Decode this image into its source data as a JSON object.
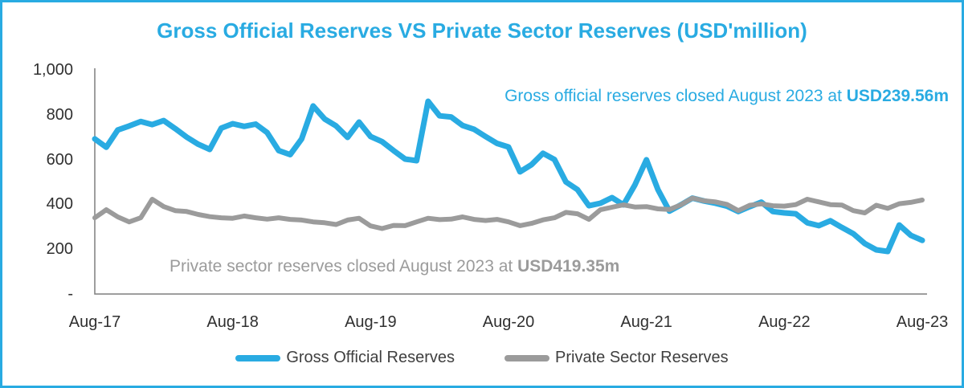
{
  "title": "Gross Official Reserves VS Private Sector Reserves (USD'million)",
  "colors": {
    "gross_line": "#29ABE2",
    "private_line": "#9B9B9B",
    "axis_line": "#7F7F7F",
    "tick_text": "#303030",
    "frame_border": "#29ABE2"
  },
  "annotations": {
    "gross": {
      "text": "Gross official reserves closed August 2023 at ",
      "value": "USD239.56m"
    },
    "private": {
      "text": "Private sector reserves closed August 2023 at ",
      "value": "USD419.35m"
    }
  },
  "legend": [
    {
      "label": "Gross Official Reserves",
      "color": "#29ABE2"
    },
    {
      "label": "Private Sector Reserves",
      "color": "#9B9B9B"
    }
  ],
  "chart_data": {
    "type": "line",
    "title": "Gross Official Reserves VS Private Sector Reserves (USD'million)",
    "xlabel": "",
    "ylabel": "",
    "ylim": [
      0,
      1000
    ],
    "grid": false,
    "legend_position": "bottom",
    "y_tick_labels": [
      "1,000",
      "800",
      "600",
      "400",
      "200",
      "-"
    ],
    "x_tick_labels": [
      "Aug-17",
      "Aug-18",
      "Aug-19",
      "Aug-20",
      "Aug-21",
      "Aug-22",
      "Aug-23"
    ],
    "x": [
      "Aug-17",
      "Sep-17",
      "Oct-17",
      "Nov-17",
      "Dec-17",
      "Jan-18",
      "Feb-18",
      "Mar-18",
      "Apr-18",
      "May-18",
      "Jun-18",
      "Jul-18",
      "Aug-18",
      "Sep-18",
      "Oct-18",
      "Nov-18",
      "Dec-18",
      "Jan-19",
      "Feb-19",
      "Mar-19",
      "Apr-19",
      "May-19",
      "Jun-19",
      "Jul-19",
      "Aug-19",
      "Sep-19",
      "Oct-19",
      "Nov-19",
      "Dec-19",
      "Jan-20",
      "Feb-20",
      "Mar-20",
      "Apr-20",
      "May-20",
      "Jun-20",
      "Jul-20",
      "Aug-20",
      "Sep-20",
      "Oct-20",
      "Nov-20",
      "Dec-20",
      "Jan-21",
      "Feb-21",
      "Mar-21",
      "Apr-21",
      "May-21",
      "Jun-21",
      "Jul-21",
      "Aug-21",
      "Sep-21",
      "Oct-21",
      "Nov-21",
      "Dec-21",
      "Jan-22",
      "Feb-22",
      "Mar-22",
      "Apr-22",
      "May-22",
      "Jun-22",
      "Jul-22",
      "Aug-22",
      "Sep-22",
      "Oct-22",
      "Nov-22",
      "Dec-22",
      "Jan-23",
      "Feb-23",
      "Mar-23",
      "Apr-23",
      "May-23",
      "Jun-23",
      "Jul-23",
      "Aug-23"
    ],
    "series": [
      {
        "name": "Gross Official Reserves",
        "color": "#29ABE2",
        "final_label": "USD239.56m",
        "values": [
          692,
          655,
          732,
          750,
          770,
          756,
          774,
          738,
          700,
          668,
          645,
          740,
          760,
          748,
          758,
          720,
          640,
          622,
          692,
          839,
          781,
          750,
          699,
          767,
          703,
          680,
          640,
          602,
          595,
          860,
          795,
          790,
          752,
          735,
          703,
          672,
          656,
          545,
          577,
          628,
          600,
          500,
          466,
          394,
          405,
          430,
          398,
          487,
          599,
          466,
          370,
          398,
          428,
          415,
          405,
          392,
          368,
          390,
          410,
          368,
          362,
          358,
          318,
          305,
          327,
          297,
          269,
          225,
          197,
          190,
          308,
          262,
          239.56
        ]
      },
      {
        "name": "Private Sector Reserves",
        "color": "#9B9B9B",
        "final_label": "USD419.35m",
        "values": [
          340,
          376,
          344,
          322,
          340,
          423,
          390,
          372,
          368,
          355,
          345,
          340,
          338,
          348,
          340,
          334,
          340,
          333,
          330,
          322,
          318,
          310,
          330,
          338,
          304,
          292,
          306,
          305,
          322,
          338,
          332,
          334,
          344,
          333,
          328,
          333,
          322,
          305,
          315,
          331,
          340,
          364,
          358,
          333,
          376,
          387,
          398,
          388,
          390,
          380,
          377,
          398,
          428,
          416,
          411,
          400,
          372,
          396,
          402,
          394,
          392,
          399,
          423,
          411,
          399,
          397,
          372,
          362,
          396,
          382,
          403,
          409,
          419.35
        ]
      }
    ]
  }
}
